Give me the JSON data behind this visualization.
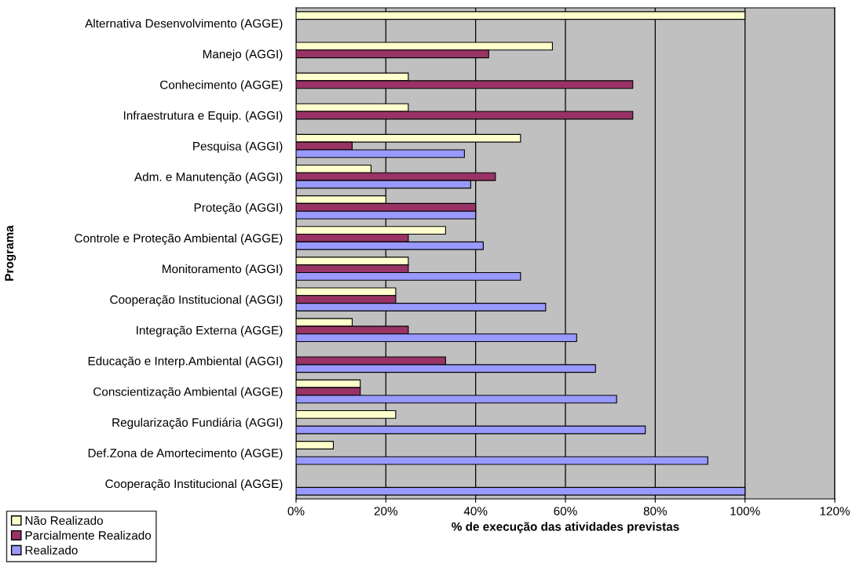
{
  "chart_data": {
    "type": "bar",
    "orientation": "horizontal",
    "categories": [
      "Alternativa Desenvolvimento (AGGE)",
      "Manejo (AGGI)",
      "Conhecimento (AGGE)",
      "Infraestrutura e Equip. (AGGI)",
      "Pesquisa (AGGI)",
      "Adm. e Manutenção (AGGI)",
      "Proteção (AGGI)",
      "Controle e Proteção Ambiental (AGGE)",
      "Monitoramento (AGGI)",
      "Cooperação Institucional (AGGI)",
      "Integração Externa (AGGE)",
      "Educação e Interp.Ambiental (AGGI)",
      "Conscientização Ambiental (AGGE)",
      "Regularização Fundiária (AGGI)",
      "Def.Zona de Amortecimento (AGGE)",
      "Cooperação Institucional (AGGE)"
    ],
    "series": [
      {
        "name": "Não Realizado",
        "color": "#ffffcc",
        "values": [
          100,
          57.1,
          25,
          25,
          50,
          16.7,
          20,
          33.3,
          25,
          22.2,
          12.5,
          null,
          14.3,
          22.2,
          8.3,
          null
        ]
      },
      {
        "name": "Parcialmente Realizado",
        "color": "#993366",
        "values": [
          null,
          42.9,
          75,
          75,
          12.5,
          44.4,
          40,
          25,
          25,
          22.2,
          25,
          33.3,
          14.3,
          null,
          null,
          null
        ]
      },
      {
        "name": "Realizado",
        "color": "#9999ff",
        "values": [
          null,
          null,
          null,
          null,
          37.5,
          38.9,
          40,
          41.7,
          50,
          55.6,
          62.5,
          66.7,
          71.4,
          77.8,
          91.7,
          100
        ]
      }
    ],
    "xlabel": "% de execução das atividades previstas",
    "ylabel": "Programa",
    "xlim": [
      0,
      120
    ],
    "xticks": [
      {
        "value": 0,
        "label": "0%"
      },
      {
        "value": 20,
        "label": "20%"
      },
      {
        "value": 40,
        "label": "40%"
      },
      {
        "value": 60,
        "label": "60%"
      },
      {
        "value": 80,
        "label": "80%"
      },
      {
        "value": 100,
        "label": "100%"
      },
      {
        "value": 120,
        "label": "120%"
      }
    ],
    "grid": "x",
    "legend": "bottom left"
  }
}
